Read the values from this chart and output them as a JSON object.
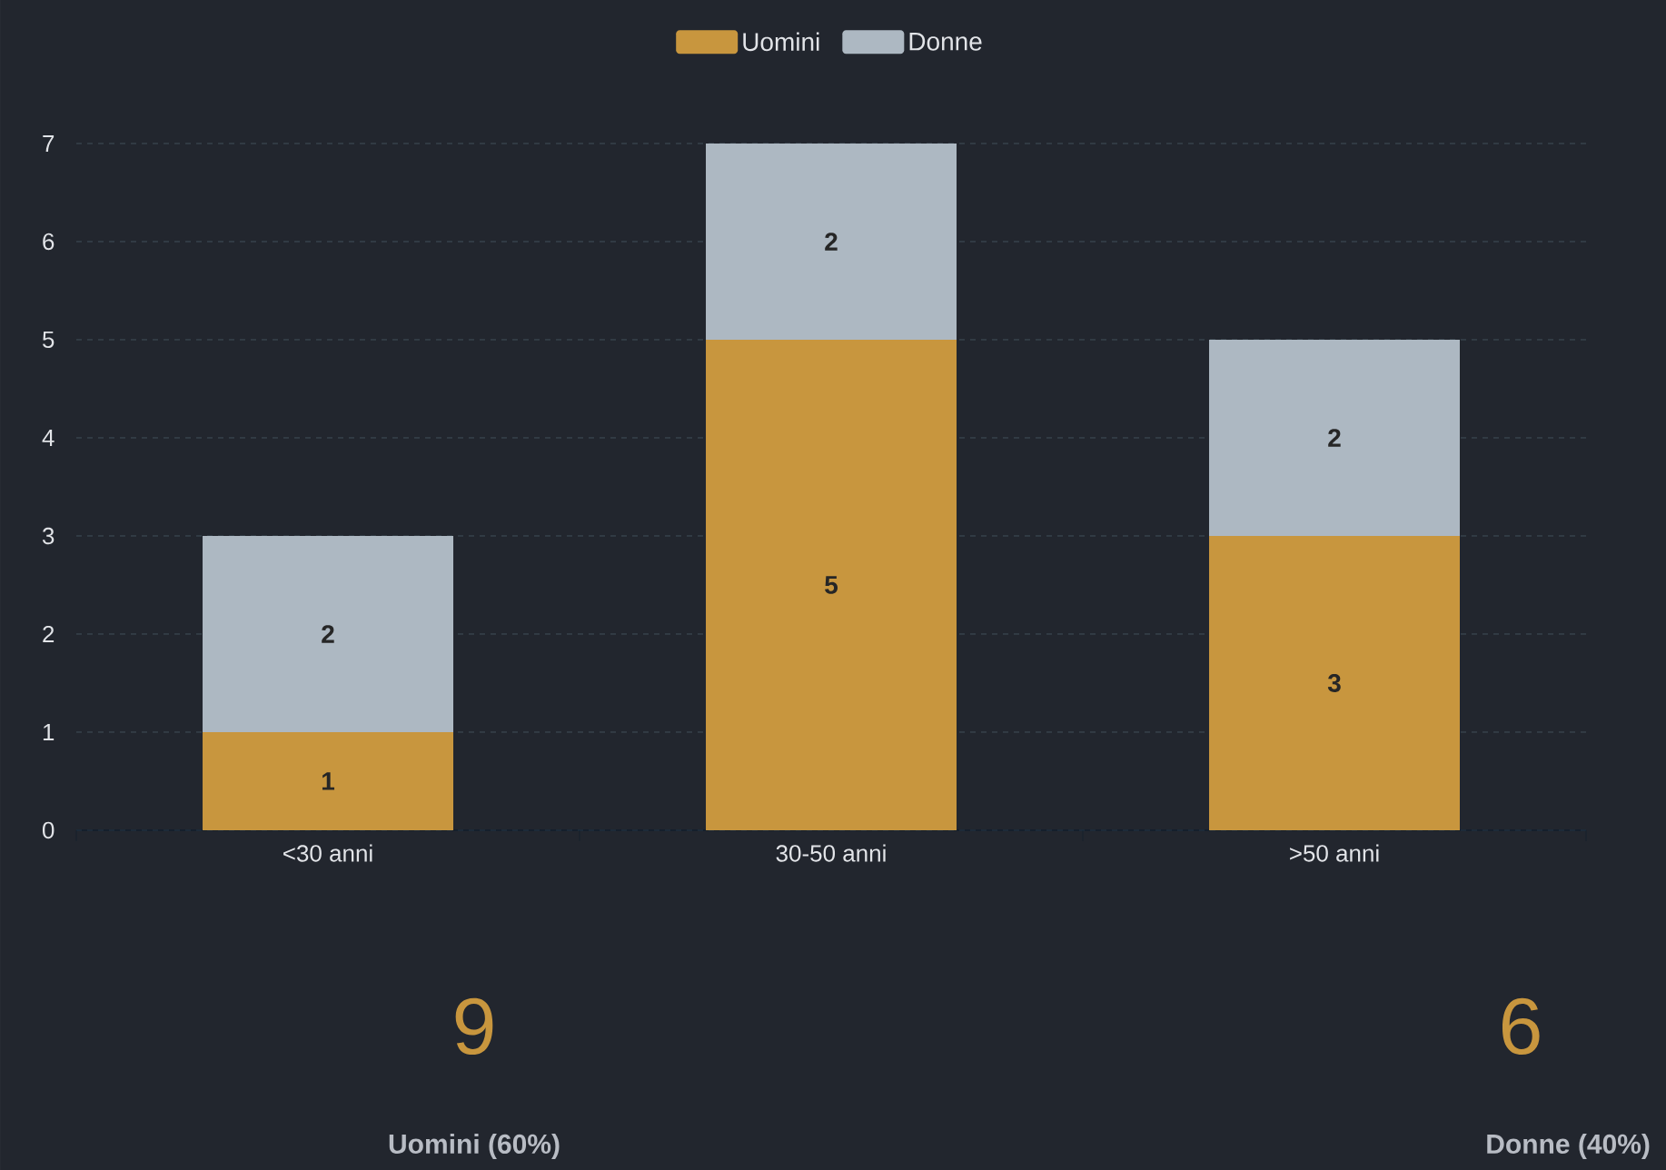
{
  "chart_data": {
    "type": "bar",
    "stacked": true,
    "categories": [
      "<30 anni",
      "30-50 anni",
      ">50 anni"
    ],
    "series": [
      {
        "name": "Uomini",
        "color": "#c8963e",
        "values": [
          1,
          5,
          3
        ]
      },
      {
        "name": "Donne",
        "color": "#adb8c2",
        "values": [
          2,
          2,
          2
        ]
      }
    ],
    "ylim": [
      0,
      7
    ],
    "yticks": [
      0,
      1,
      2,
      3,
      4,
      5,
      6,
      7
    ],
    "grid": "y",
    "legend": "top",
    "data_labels": true,
    "annotations": [
      "9",
      "Uomini (60%)",
      "6",
      "Donne (40%)"
    ]
  }
}
